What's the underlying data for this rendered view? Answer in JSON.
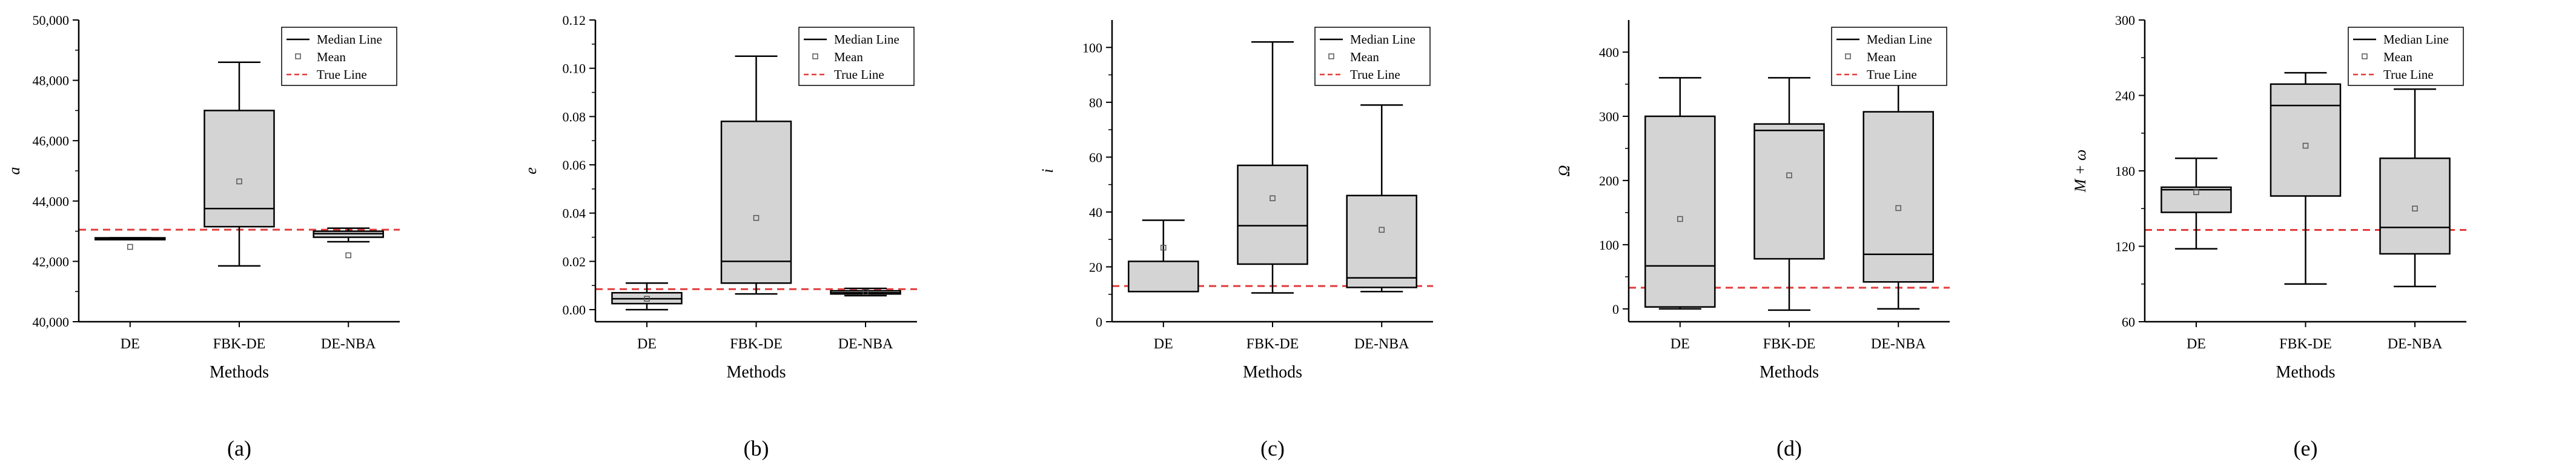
{
  "figure": {
    "legend": {
      "median_label": "Median Line",
      "mean_label": "Mean",
      "true_label": "True Line"
    },
    "colors": {
      "box_fill": "#d4d4d4",
      "box_stroke": "#000000",
      "true_line": "#e23b3b",
      "mean_marker": "#555555"
    }
  },
  "chart_data": [
    {
      "type": "box",
      "panel_label": "(a)",
      "xlabel": "Methods",
      "ylabel": "a",
      "categories": [
        "DE",
        "FBK-DE",
        "DE-NBA"
      ],
      "ylim": [
        40000,
        50000
      ],
      "yticks": [
        40000,
        42000,
        44000,
        46000,
        48000,
        50000
      ],
      "ytick_labels": [
        "40,000",
        "42,000",
        "44,000",
        "46,000",
        "48,000",
        "50,000"
      ],
      "true_value": 43050,
      "boxes": [
        {
          "min": 42740,
          "q1": 42740,
          "median": 42760,
          "q3": 42780,
          "max": 42780,
          "mean": 42480
        },
        {
          "min": 41850,
          "q1": 43150,
          "median": 43750,
          "q3": 47000,
          "max": 48600,
          "mean": 44650
        },
        {
          "min": 42650,
          "q1": 42800,
          "median": 42920,
          "q3": 43000,
          "max": 43100,
          "mean": 42200
        }
      ]
    },
    {
      "type": "box",
      "panel_label": "(b)",
      "xlabel": "Methods",
      "ylabel": "e",
      "categories": [
        "DE",
        "FBK-DE",
        "DE-NBA"
      ],
      "ylim": [
        -0.005,
        0.12
      ],
      "yticks": [
        0.0,
        0.02,
        0.04,
        0.06,
        0.08,
        0.1,
        0.12
      ],
      "ytick_labels": [
        "0.00",
        "0.02",
        "0.04",
        "0.06",
        "0.08",
        "0.10",
        "0.12"
      ],
      "true_value": 0.0085,
      "boxes": [
        {
          "min": 0.0,
          "q1": 0.0025,
          "median": 0.0045,
          "q3": 0.007,
          "max": 0.011,
          "mean": 0.0045
        },
        {
          "min": 0.0065,
          "q1": 0.011,
          "median": 0.02,
          "q3": 0.078,
          "max": 0.105,
          "mean": 0.038
        },
        {
          "min": 0.0058,
          "q1": 0.0065,
          "median": 0.007,
          "q3": 0.0078,
          "max": 0.0088,
          "mean": 0.0072
        }
      ]
    },
    {
      "type": "box",
      "panel_label": "(c)",
      "xlabel": "Methods",
      "ylabel": "i",
      "categories": [
        "DE",
        "FBK-DE",
        "DE-NBA"
      ],
      "ylim": [
        0,
        110
      ],
      "yticks": [
        0,
        20,
        40,
        60,
        80,
        100
      ],
      "ytick_labels": [
        "0",
        "20",
        "40",
        "60",
        "80",
        "100"
      ],
      "true_value": 13,
      "boxes": [
        {
          "min": 11,
          "q1": 11,
          "median": 11,
          "q3": 22,
          "max": 37,
          "mean": 27
        },
        {
          "min": 10.5,
          "q1": 21,
          "median": 35,
          "q3": 57,
          "max": 102,
          "mean": 45
        },
        {
          "min": 11,
          "q1": 12.5,
          "median": 16,
          "q3": 46,
          "max": 79,
          "mean": 33.5
        }
      ]
    },
    {
      "type": "box",
      "panel_label": "(d)",
      "xlabel": "Methods",
      "ylabel": "Ω",
      "categories": [
        "DE",
        "FBK-DE",
        "DE-NBA"
      ],
      "ylim": [
        -20,
        450
      ],
      "yticks": [
        0,
        100,
        200,
        300,
        400
      ],
      "ytick_labels": [
        "0",
        "100",
        "200",
        "300",
        "400"
      ],
      "true_value": 33,
      "boxes": [
        {
          "min": 0,
          "q1": 3,
          "median": 67,
          "q3": 300,
          "max": 360,
          "mean": 140
        },
        {
          "min": -2,
          "q1": 78,
          "median": 278,
          "q3": 288,
          "max": 360,
          "mean": 208
        },
        {
          "min": 0,
          "q1": 42,
          "median": 85,
          "q3": 307,
          "max": 360,
          "mean": 157
        }
      ]
    },
    {
      "type": "box",
      "panel_label": "(e)",
      "xlabel": "Methods",
      "ylabel": "M + ω",
      "categories": [
        "DE",
        "FBK-DE",
        "DE-NBA"
      ],
      "ylim": [
        60,
        300
      ],
      "yticks": [
        60,
        120,
        180,
        240,
        300
      ],
      "ytick_labels": [
        "60",
        "120",
        "180",
        "240",
        "300"
      ],
      "true_value": 133,
      "boxes": [
        {
          "min": 118,
          "q1": 147,
          "median": 165,
          "q3": 167,
          "max": 190,
          "mean": 163
        },
        {
          "min": 90,
          "q1": 160,
          "median": 232,
          "q3": 249,
          "max": 258,
          "mean": 200
        },
        {
          "min": 88,
          "q1": 114,
          "median": 135,
          "q3": 190,
          "max": 245,
          "mean": 150
        }
      ]
    }
  ]
}
